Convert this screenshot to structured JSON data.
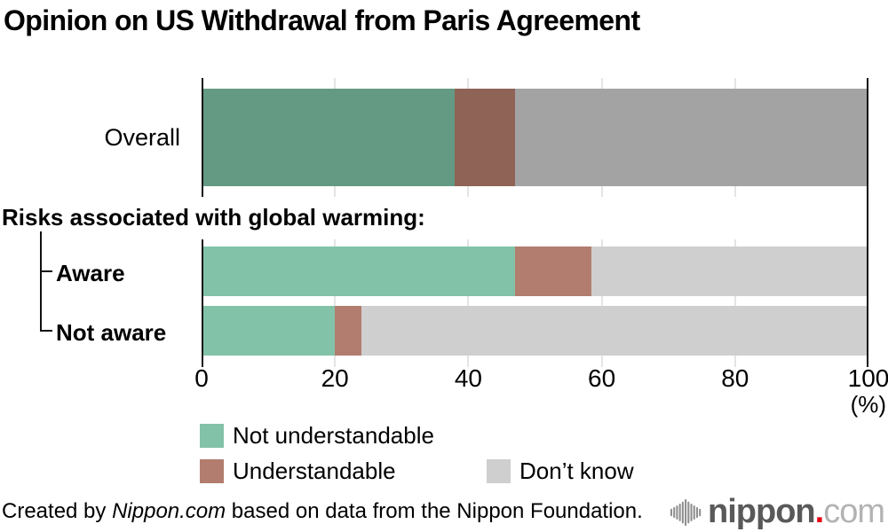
{
  "title": "Opinion on US Withdrawal from Paris Agreement",
  "chart_data": {
    "type": "bar",
    "stacked": true,
    "orientation": "horizontal",
    "title": "Opinion on US Withdrawal from Paris Agreement",
    "xlim": [
      0,
      100
    ],
    "x_ticks": [
      0,
      20,
      40,
      60,
      80,
      100
    ],
    "x_unit": "(%)",
    "grid": true,
    "series_names": [
      "Not understandable",
      "Understandable",
      "Don’t know"
    ],
    "group_label": "Risks associated with global warming:",
    "rows": [
      {
        "label": "Overall",
        "group": null,
        "palette": "overall",
        "values": [
          38,
          9,
          53
        ]
      },
      {
        "label": "Aware",
        "group": "Risks associated with global warming:",
        "palette": "subgroup",
        "values": [
          47,
          11.5,
          41.5
        ]
      },
      {
        "label": "Not aware",
        "group": "Risks associated with global warming:",
        "palette": "subgroup",
        "values": [
          20,
          4,
          76
        ]
      }
    ],
    "colors": {
      "overall": [
        "#649a83",
        "#8f6356",
        "#a3a3a3"
      ],
      "subgroup": [
        "#82c2a8",
        "#b27d6e",
        "#cfcfcf"
      ]
    },
    "gridline_color": "#c9c9c9",
    "axis_color": "#111111",
    "legend_position": "bottom"
  },
  "legend": {
    "items": [
      {
        "label": "Not understandable",
        "color": "#82c2a8"
      },
      {
        "label": "Understandable",
        "color": "#b27d6e"
      },
      {
        "label": "Don’t know",
        "color": "#cfcfcf"
      }
    ]
  },
  "labels": {
    "percent_unit": "(%)"
  },
  "footer": {
    "prefix": "Created by ",
    "brand": "Nippon.com",
    "suffix": " based on data from the Nippon Foundation."
  },
  "logo": {
    "icon": "sound-wave-icon",
    "name": "nippon",
    "dot": ".",
    "tld": "com",
    "colors": {
      "name": "#595959",
      "dot": "#e60012",
      "tld": "#b3b3b3",
      "wave": "#8f8f8f"
    }
  }
}
